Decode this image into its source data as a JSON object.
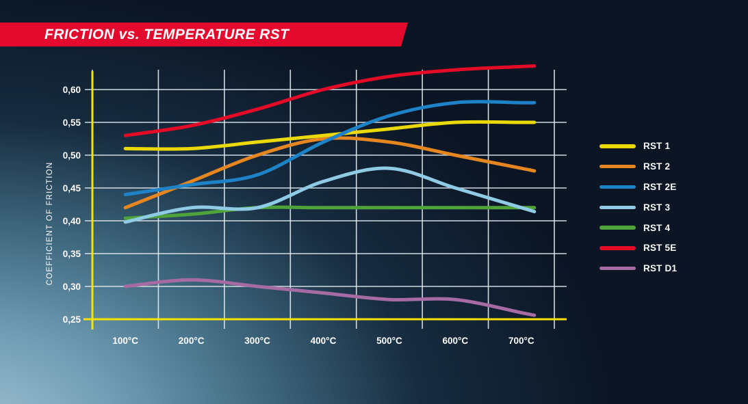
{
  "title": {
    "text": "FRICTION vs. TEMPERATURE RST"
  },
  "colors": {
    "banner_red": "#e30a2e",
    "axis_yellow": "#f7e203",
    "grid_white": "#e3ebf0",
    "background_dark": "#0b1524",
    "background_light": "#a3c3d5",
    "label_white": "#ffffff"
  },
  "chart_data": {
    "type": "line",
    "title": "FRICTION vs. TEMPERATURE RST",
    "xlabel": "",
    "ylabel": "COEFFICIENT OF FRICTION",
    "x_categories": [
      "100°C",
      "200°C",
      "300°C",
      "400°C",
      "500°C",
      "600°C",
      "700°C"
    ],
    "y_ticks": [
      {
        "value": 0.6,
        "label": "0,60"
      },
      {
        "value": 0.55,
        "label": "0,55"
      },
      {
        "value": 0.5,
        "label": "0,50"
      },
      {
        "value": 0.45,
        "label": "0,45"
      },
      {
        "value": 0.4,
        "label": "0,40"
      },
      {
        "value": 0.35,
        "label": "0,35"
      },
      {
        "value": 0.3,
        "label": "0,30"
      },
      {
        "value": 0.25,
        "label": "0,25"
      }
    ],
    "ylim": [
      0.25,
      0.638
    ],
    "grid": true,
    "legend_position": "right",
    "series": [
      {
        "name": "RST 1",
        "color": "#ead907",
        "values": [
          0.51,
          0.51,
          0.52,
          0.53,
          0.54,
          0.55,
          0.55
        ]
      },
      {
        "name": "RST 2",
        "color": "#e58620",
        "values": [
          0.42,
          0.46,
          0.5,
          0.525,
          0.52,
          0.5,
          0.48
        ]
      },
      {
        "name": "RST 2E",
        "color": "#1e82c6",
        "values": [
          0.44,
          0.455,
          0.47,
          0.52,
          0.56,
          0.58,
          0.58
        ]
      },
      {
        "name": "RST 3",
        "color": "#8fcbe4",
        "values": [
          0.398,
          0.42,
          0.42,
          0.46,
          0.48,
          0.45,
          0.42
        ]
      },
      {
        "name": "RST 4",
        "color": "#4ea33a",
        "values": [
          0.404,
          0.41,
          0.42,
          0.42,
          0.42,
          0.42,
          0.42
        ]
      },
      {
        "name": "RST 5E",
        "color": "#e30b26",
        "values": [
          0.53,
          0.545,
          0.57,
          0.6,
          0.62,
          0.63,
          0.635
        ]
      },
      {
        "name": "RST D1",
        "color": "#a76ba4",
        "values": [
          0.3,
          0.31,
          0.3,
          0.29,
          0.28,
          0.28,
          0.26
        ]
      }
    ]
  }
}
